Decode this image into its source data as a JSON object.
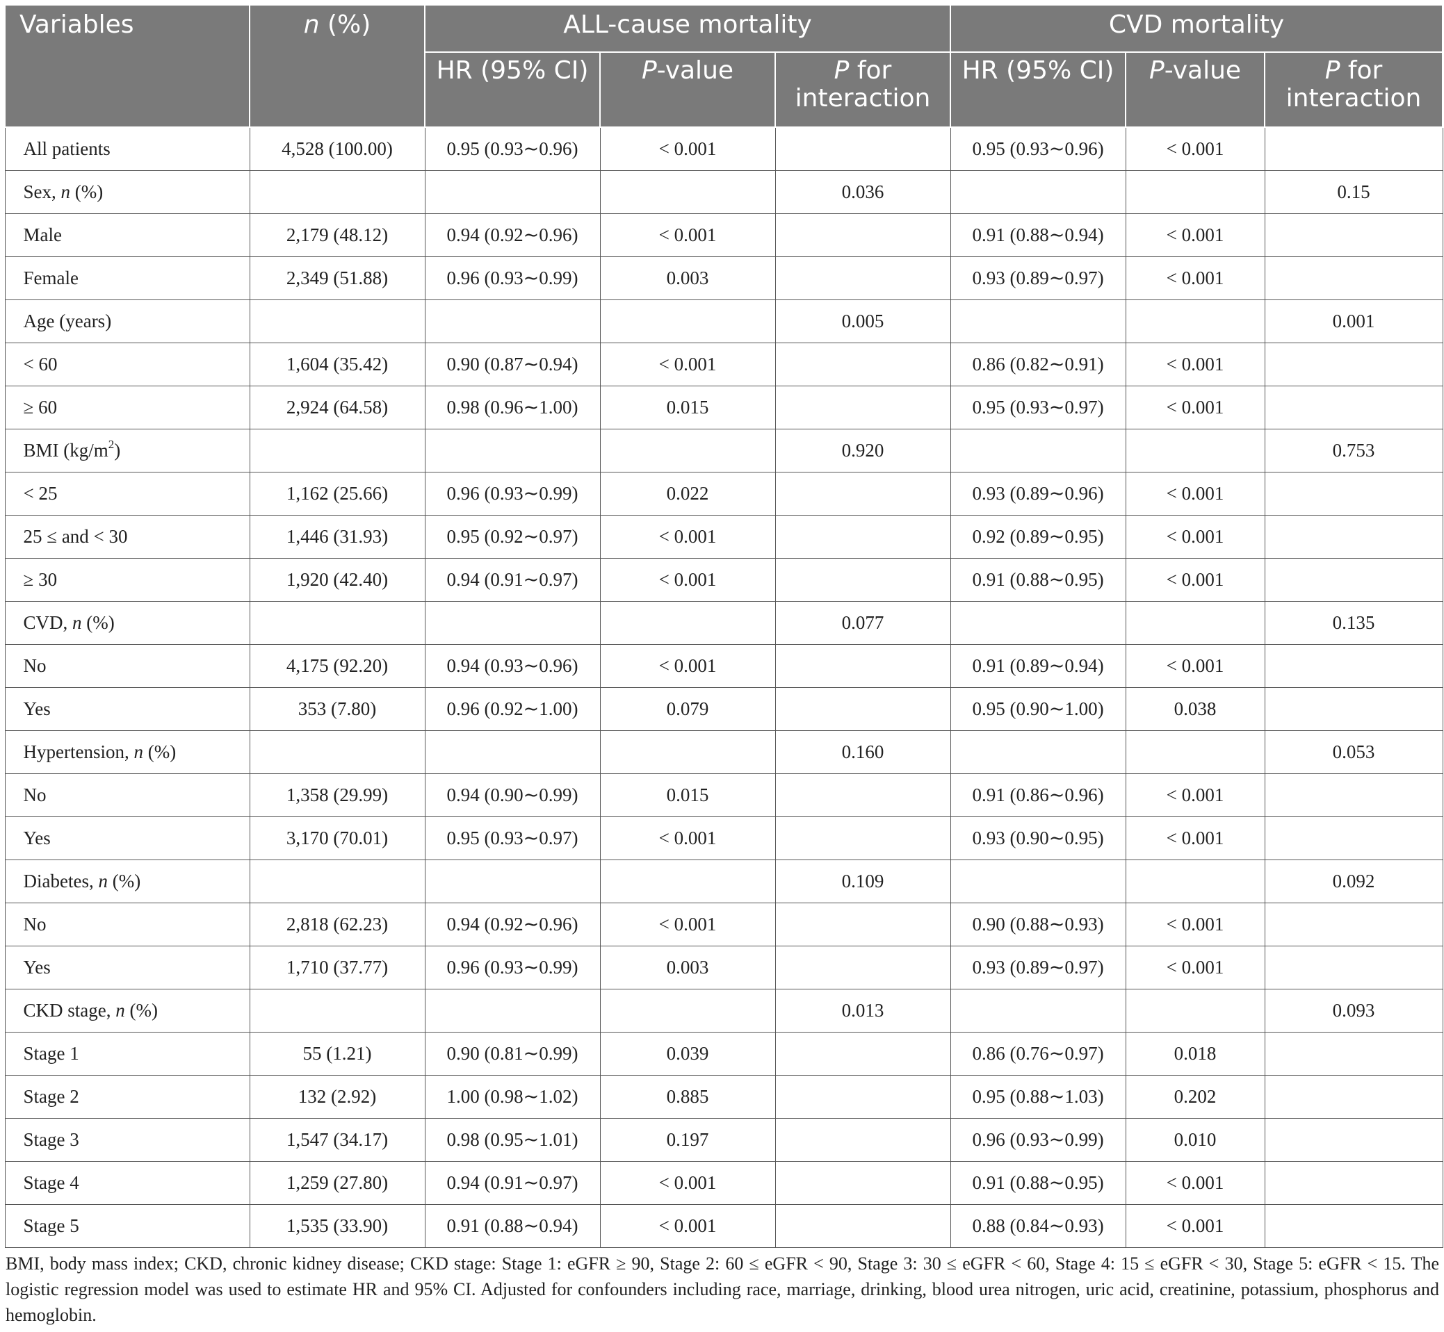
{
  "header": {
    "variables": "Variables",
    "n_pct_n": "n",
    "n_pct_rest": " (%)",
    "all_cause": "ALL-cause mortality",
    "cvd": "CVD mortality",
    "hr": "HR (95% CI)",
    "p_italic": "P",
    "p_value_rest": "-value",
    "p_interaction_rest": " for interaction"
  },
  "rows": [
    {
      "label": "All patients",
      "n": "4,528 (100.00)",
      "ac_hr": "0.95 (0.93∼0.96)",
      "ac_p": "< 0.001",
      "ac_int": "",
      "cvd_hr": "0.95 (0.93∼0.96)",
      "cvd_p": "< 0.001",
      "cvd_int": ""
    },
    {
      "label": "Sex, ",
      "label_it": "n",
      "label_rest": " (%)",
      "n": "",
      "ac_hr": "",
      "ac_p": "",
      "ac_int": "0.036",
      "cvd_hr": "",
      "cvd_p": "",
      "cvd_int": "0.15"
    },
    {
      "label": "Male",
      "n": "2,179 (48.12)",
      "ac_hr": "0.94 (0.92∼0.96)",
      "ac_p": "< 0.001",
      "ac_int": "",
      "cvd_hr": "0.91 (0.88∼0.94)",
      "cvd_p": "< 0.001",
      "cvd_int": ""
    },
    {
      "label": "Female",
      "n": "2,349 (51.88)",
      "ac_hr": "0.96 (0.93∼0.99)",
      "ac_p": "0.003",
      "ac_int": "",
      "cvd_hr": "0.93 (0.89∼0.97)",
      "cvd_p": "< 0.001",
      "cvd_int": ""
    },
    {
      "label": "Age (years)",
      "n": "",
      "ac_hr": "",
      "ac_p": "",
      "ac_int": "0.005",
      "cvd_hr": "",
      "cvd_p": "",
      "cvd_int": "0.001"
    },
    {
      "label": "< 60",
      "n": "1,604 (35.42)",
      "ac_hr": "0.90 (0.87∼0.94)",
      "ac_p": "< 0.001",
      "ac_int": "",
      "cvd_hr": "0.86 (0.82∼0.91)",
      "cvd_p": "< 0.001",
      "cvd_int": ""
    },
    {
      "label": "≥ 60",
      "n": "2,924 (64.58)",
      "ac_hr": "0.98 (0.96∼1.00)",
      "ac_p": "0.015",
      "ac_int": "",
      "cvd_hr": "0.95 (0.93∼0.97)",
      "cvd_p": "< 0.001",
      "cvd_int": ""
    },
    {
      "label": "BMI (kg/m",
      "label_sup": "2",
      "label_rest": ")",
      "n": "",
      "ac_hr": "",
      "ac_p": "",
      "ac_int": "0.920",
      "cvd_hr": "",
      "cvd_p": "",
      "cvd_int": "0.753"
    },
    {
      "label": "< 25",
      "n": "1,162 (25.66)",
      "ac_hr": "0.96 (0.93∼0.99)",
      "ac_p": "0.022",
      "ac_int": "",
      "cvd_hr": "0.93 (0.89∼0.96)",
      "cvd_p": "< 0.001",
      "cvd_int": ""
    },
    {
      "label": "25 ≤ and < 30",
      "n": "1,446 (31.93)",
      "ac_hr": "0.95 (0.92∼0.97)",
      "ac_p": "< 0.001",
      "ac_int": "",
      "cvd_hr": "0.92 (0.89∼0.95)",
      "cvd_p": "< 0.001",
      "cvd_int": ""
    },
    {
      "label": "≥ 30",
      "n": "1,920 (42.40)",
      "ac_hr": "0.94 (0.91∼0.97)",
      "ac_p": "< 0.001",
      "ac_int": "",
      "cvd_hr": "0.91 (0.88∼0.95)",
      "cvd_p": "< 0.001",
      "cvd_int": ""
    },
    {
      "label": "CVD, ",
      "label_it": "n",
      "label_rest": " (%)",
      "n": "",
      "ac_hr": "",
      "ac_p": "",
      "ac_int": "0.077",
      "cvd_hr": "",
      "cvd_p": "",
      "cvd_int": "0.135"
    },
    {
      "label": "No",
      "n": "4,175 (92.20)",
      "ac_hr": "0.94 (0.93∼0.96)",
      "ac_p": "< 0.001",
      "ac_int": "",
      "cvd_hr": "0.91 (0.89∼0.94)",
      "cvd_p": "< 0.001",
      "cvd_int": ""
    },
    {
      "label": "Yes",
      "n": "353 (7.80)",
      "ac_hr": "0.96 (0.92∼1.00)",
      "ac_p": "0.079",
      "ac_int": "",
      "cvd_hr": "0.95 (0.90∼1.00)",
      "cvd_p": "0.038",
      "cvd_int": ""
    },
    {
      "label": "Hypertension, ",
      "label_it": "n",
      "label_rest": " (%)",
      "n": "",
      "ac_hr": "",
      "ac_p": "",
      "ac_int": "0.160",
      "cvd_hr": "",
      "cvd_p": "",
      "cvd_int": "0.053"
    },
    {
      "label": "No",
      "n": "1,358 (29.99)",
      "ac_hr": "0.94 (0.90∼0.99)",
      "ac_p": "0.015",
      "ac_int": "",
      "cvd_hr": "0.91 (0.86∼0.96)",
      "cvd_p": "< 0.001",
      "cvd_int": ""
    },
    {
      "label": "Yes",
      "n": "3,170 (70.01)",
      "ac_hr": "0.95 (0.93∼0.97)",
      "ac_p": "< 0.001",
      "ac_int": "",
      "cvd_hr": "0.93 (0.90∼0.95)",
      "cvd_p": "< 0.001",
      "cvd_int": ""
    },
    {
      "label": "Diabetes, ",
      "label_it": "n",
      "label_rest": " (%)",
      "n": "",
      "ac_hr": "",
      "ac_p": "",
      "ac_int": "0.109",
      "cvd_hr": "",
      "cvd_p": "",
      "cvd_int": "0.092"
    },
    {
      "label": "No",
      "n": "2,818 (62.23)",
      "ac_hr": "0.94 (0.92∼0.96)",
      "ac_p": "< 0.001",
      "ac_int": "",
      "cvd_hr": "0.90 (0.88∼0.93)",
      "cvd_p": "< 0.001",
      "cvd_int": ""
    },
    {
      "label": "Yes",
      "n": "1,710 (37.77)",
      "ac_hr": "0.96 (0.93∼0.99)",
      "ac_p": "0.003",
      "ac_int": "",
      "cvd_hr": "0.93 (0.89∼0.97)",
      "cvd_p": "< 0.001",
      "cvd_int": ""
    },
    {
      "label": "CKD stage, ",
      "label_it": "n",
      "label_rest": " (%)",
      "n": "",
      "ac_hr": "",
      "ac_p": "",
      "ac_int": "0.013",
      "cvd_hr": "",
      "cvd_p": "",
      "cvd_int": "0.093"
    },
    {
      "label": "Stage 1",
      "n": "55 (1.21)",
      "ac_hr": "0.90 (0.81∼0.99)",
      "ac_p": "0.039",
      "ac_int": "",
      "cvd_hr": "0.86 (0.76∼0.97)",
      "cvd_p": "0.018",
      "cvd_int": ""
    },
    {
      "label": "Stage 2",
      "n": "132 (2.92)",
      "ac_hr": "1.00 (0.98∼1.02)",
      "ac_p": "0.885",
      "ac_int": "",
      "cvd_hr": "0.95 (0.88∼1.03)",
      "cvd_p": "0.202",
      "cvd_int": ""
    },
    {
      "label": "Stage 3",
      "n": "1,547 (34.17)",
      "ac_hr": "0.98 (0.95∼1.01)",
      "ac_p": "0.197",
      "ac_int": "",
      "cvd_hr": "0.96 (0.93∼0.99)",
      "cvd_p": "0.010",
      "cvd_int": ""
    },
    {
      "label": "Stage 4",
      "n": "1,259 (27.80)",
      "ac_hr": "0.94 (0.91∼0.97)",
      "ac_p": "< 0.001",
      "ac_int": "",
      "cvd_hr": "0.91 (0.88∼0.95)",
      "cvd_p": "< 0.001",
      "cvd_int": ""
    },
    {
      "label": "Stage 5",
      "n": "1,535 (33.90)",
      "ac_hr": "0.91 (0.88∼0.94)",
      "ac_p": "< 0.001",
      "ac_int": "",
      "cvd_hr": "0.88 (0.84∼0.93)",
      "cvd_p": "< 0.001",
      "cvd_int": ""
    }
  ],
  "footnote": "BMI, body mass index; CKD, chronic kidney disease; CKD stage: Stage 1: eGFR ≥ 90, Stage 2: 60 ≤ eGFR < 90, Stage 3: 30 ≤ eGFR < 60, Stage 4: 15 ≤ eGFR < 30, Stage 5: eGFR < 15. The logistic regression model was used to estimate HR and 95% CI. Adjusted for confounders including race, marriage, drinking, blood urea nitrogen, uric acid, creatinine, potassium, phosphorus and hemoglobin."
}
